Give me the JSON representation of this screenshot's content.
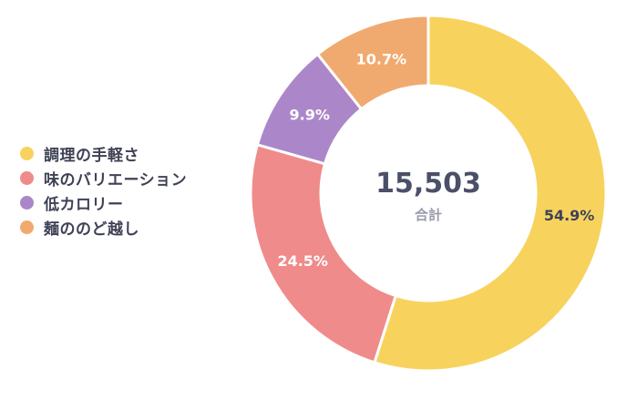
{
  "chart_data": {
    "type": "pie",
    "categories": [
      "調理の手軽さ",
      "味のバリエーション",
      "低カロリー",
      "麺ののど越し"
    ],
    "values": [
      54.9,
      24.5,
      9.9,
      10.7
    ],
    "value_labels": [
      "54.9%",
      "24.5%",
      "9.9%",
      "10.7%"
    ],
    "colors": [
      "#f7d35e",
      "#ef8b8a",
      "#ab87c9",
      "#f0aa6f"
    ],
    "label_colors": [
      "#3f4256",
      "#ffffff",
      "#ffffff",
      "#ffffff"
    ],
    "donut": true,
    "legend_position": "left",
    "center": {
      "total": "15,503",
      "caption": "合計"
    }
  }
}
